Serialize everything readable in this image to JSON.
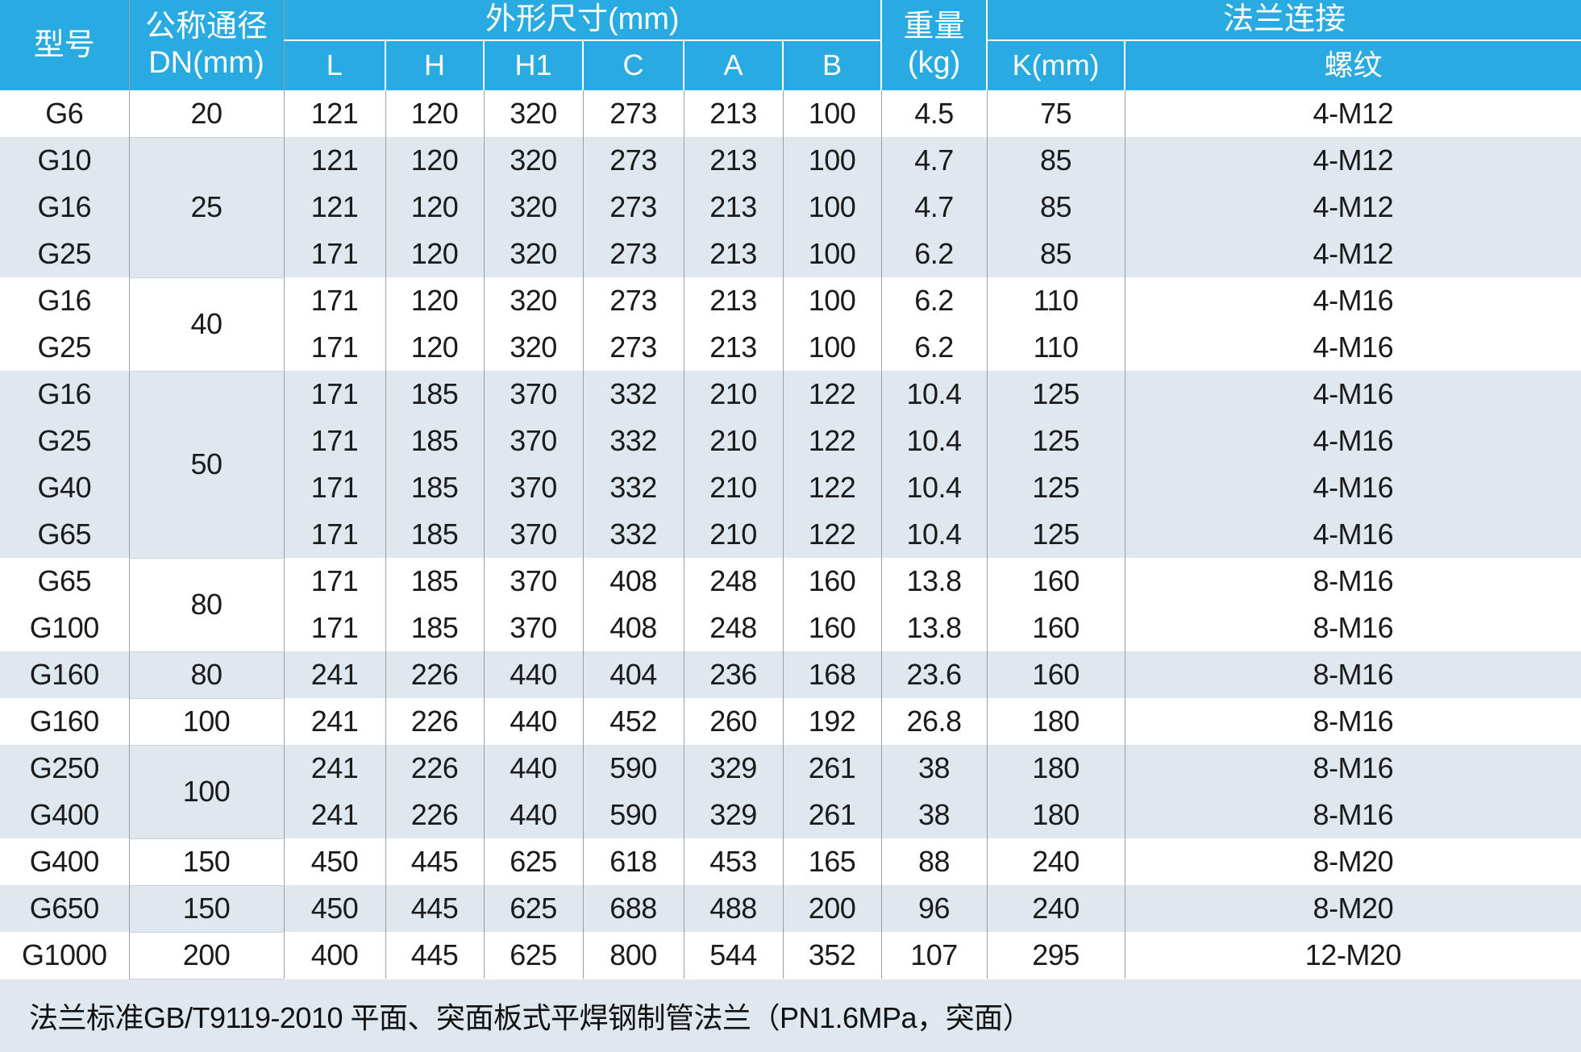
{
  "colors": {
    "header_bg": "#29ABE2",
    "header_text": "#FFFFFF",
    "row_alt": "#DFE7EF",
    "row_white": "#FFFFFF",
    "grid_line": "#9E9E9E"
  },
  "table": {
    "header": {
      "model": "型号",
      "dn": "公称通径\nDN(mm)",
      "dims_group": "外形尺寸(mm)",
      "dim_cols": [
        "L",
        "H",
        "H1",
        "C",
        "A",
        "B"
      ],
      "weight": "重量\n(kg)",
      "flange_group": "法兰连接",
      "flange_cols": [
        "K(mm)",
        "螺纹"
      ]
    },
    "rows": [
      {
        "model": "G6",
        "dn_value": "20",
        "dn_rowspan": 1,
        "dims": [
          "121",
          "120",
          "320",
          "273",
          "213",
          "100"
        ],
        "weight_kg": "4.5",
        "k_mm": "75",
        "thread": "4-M12",
        "shade": "w"
      },
      {
        "model": "G10",
        "dn_value": "25",
        "dn_rowspan": 3,
        "dims": [
          "121",
          "120",
          "320",
          "273",
          "213",
          "100"
        ],
        "weight_kg": "4.7",
        "k_mm": "85",
        "thread": "4-M12",
        "shade": "b"
      },
      {
        "model": "G16",
        "dn_value": null,
        "dims": [
          "121",
          "120",
          "320",
          "273",
          "213",
          "100"
        ],
        "weight_kg": "4.7",
        "k_mm": "85",
        "thread": "4-M12",
        "shade": "b"
      },
      {
        "model": "G25",
        "dn_value": null,
        "dims": [
          "171",
          "120",
          "320",
          "273",
          "213",
          "100"
        ],
        "weight_kg": "6.2",
        "k_mm": "85",
        "thread": "4-M12",
        "shade": "b"
      },
      {
        "model": "G16",
        "dn_value": "40",
        "dn_rowspan": 2,
        "dims": [
          "171",
          "120",
          "320",
          "273",
          "213",
          "100"
        ],
        "weight_kg": "6.2",
        "k_mm": "110",
        "thread": "4-M16",
        "shade": "w"
      },
      {
        "model": "G25",
        "dn_value": null,
        "dims": [
          "171",
          "120",
          "320",
          "273",
          "213",
          "100"
        ],
        "weight_kg": "6.2",
        "k_mm": "110",
        "thread": "4-M16",
        "shade": "w"
      },
      {
        "model": "G16",
        "dn_value": "50",
        "dn_rowspan": 4,
        "dims": [
          "171",
          "185",
          "370",
          "332",
          "210",
          "122"
        ],
        "weight_kg": "10.4",
        "k_mm": "125",
        "thread": "4-M16",
        "shade": "b"
      },
      {
        "model": "G25",
        "dn_value": null,
        "dims": [
          "171",
          "185",
          "370",
          "332",
          "210",
          "122"
        ],
        "weight_kg": "10.4",
        "k_mm": "125",
        "thread": "4-M16",
        "shade": "b"
      },
      {
        "model": "G40",
        "dn_value": null,
        "dims": [
          "171",
          "185",
          "370",
          "332",
          "210",
          "122"
        ],
        "weight_kg": "10.4",
        "k_mm": "125",
        "thread": "4-M16",
        "shade": "b"
      },
      {
        "model": "G65",
        "dn_value": null,
        "dims": [
          "171",
          "185",
          "370",
          "332",
          "210",
          "122"
        ],
        "weight_kg": "10.4",
        "k_mm": "125",
        "thread": "4-M16",
        "shade": "b"
      },
      {
        "model": "G65",
        "dn_value": "80",
        "dn_rowspan": 2,
        "dims": [
          "171",
          "185",
          "370",
          "408",
          "248",
          "160"
        ],
        "weight_kg": "13.8",
        "k_mm": "160",
        "thread": "8-M16",
        "shade": "w"
      },
      {
        "model": "G100",
        "dn_value": null,
        "dims": [
          "171",
          "185",
          "370",
          "408",
          "248",
          "160"
        ],
        "weight_kg": "13.8",
        "k_mm": "160",
        "thread": "8-M16",
        "shade": "w"
      },
      {
        "model": "G160",
        "dn_value": "80",
        "dn_rowspan": 1,
        "dims": [
          "241",
          "226",
          "440",
          "404",
          "236",
          "168"
        ],
        "weight_kg": "23.6",
        "k_mm": "160",
        "thread": "8-M16",
        "shade": "b"
      },
      {
        "model": "G160",
        "dn_value": "100",
        "dn_rowspan": 1,
        "dims": [
          "241",
          "226",
          "440",
          "452",
          "260",
          "192"
        ],
        "weight_kg": "26.8",
        "k_mm": "180",
        "thread": "8-M16",
        "shade": "w"
      },
      {
        "model": "G250",
        "dn_value": "100",
        "dn_rowspan": 2,
        "dims": [
          "241",
          "226",
          "440",
          "590",
          "329",
          "261"
        ],
        "weight_kg": "38",
        "k_mm": "180",
        "thread": "8-M16",
        "shade": "b"
      },
      {
        "model": "G400",
        "dn_value": null,
        "dims": [
          "241",
          "226",
          "440",
          "590",
          "329",
          "261"
        ],
        "weight_kg": "38",
        "k_mm": "180",
        "thread": "8-M16",
        "shade": "b"
      },
      {
        "model": "G400",
        "dn_value": "150",
        "dn_rowspan": 1,
        "dims": [
          "450",
          "445",
          "625",
          "618",
          "453",
          "165"
        ],
        "weight_kg": "88",
        "k_mm": "240",
        "thread": "8-M20",
        "shade": "w"
      },
      {
        "model": "G650",
        "dn_value": "150",
        "dn_rowspan": 1,
        "dims": [
          "450",
          "445",
          "625",
          "688",
          "488",
          "200"
        ],
        "weight_kg": "96",
        "k_mm": "240",
        "thread": "8-M20",
        "shade": "b"
      },
      {
        "model": "G1000",
        "dn_value": "200",
        "dn_rowspan": 1,
        "dims": [
          "400",
          "445",
          "625",
          "800",
          "544",
          "352"
        ],
        "weight_kg": "107",
        "k_mm": "295",
        "thread": "12-M20",
        "shade": "w"
      }
    ],
    "footer": "法兰标准GB/T9119-2010 平面、突面板式平焊钢制管法兰（PN1.6MPa，突面）"
  }
}
